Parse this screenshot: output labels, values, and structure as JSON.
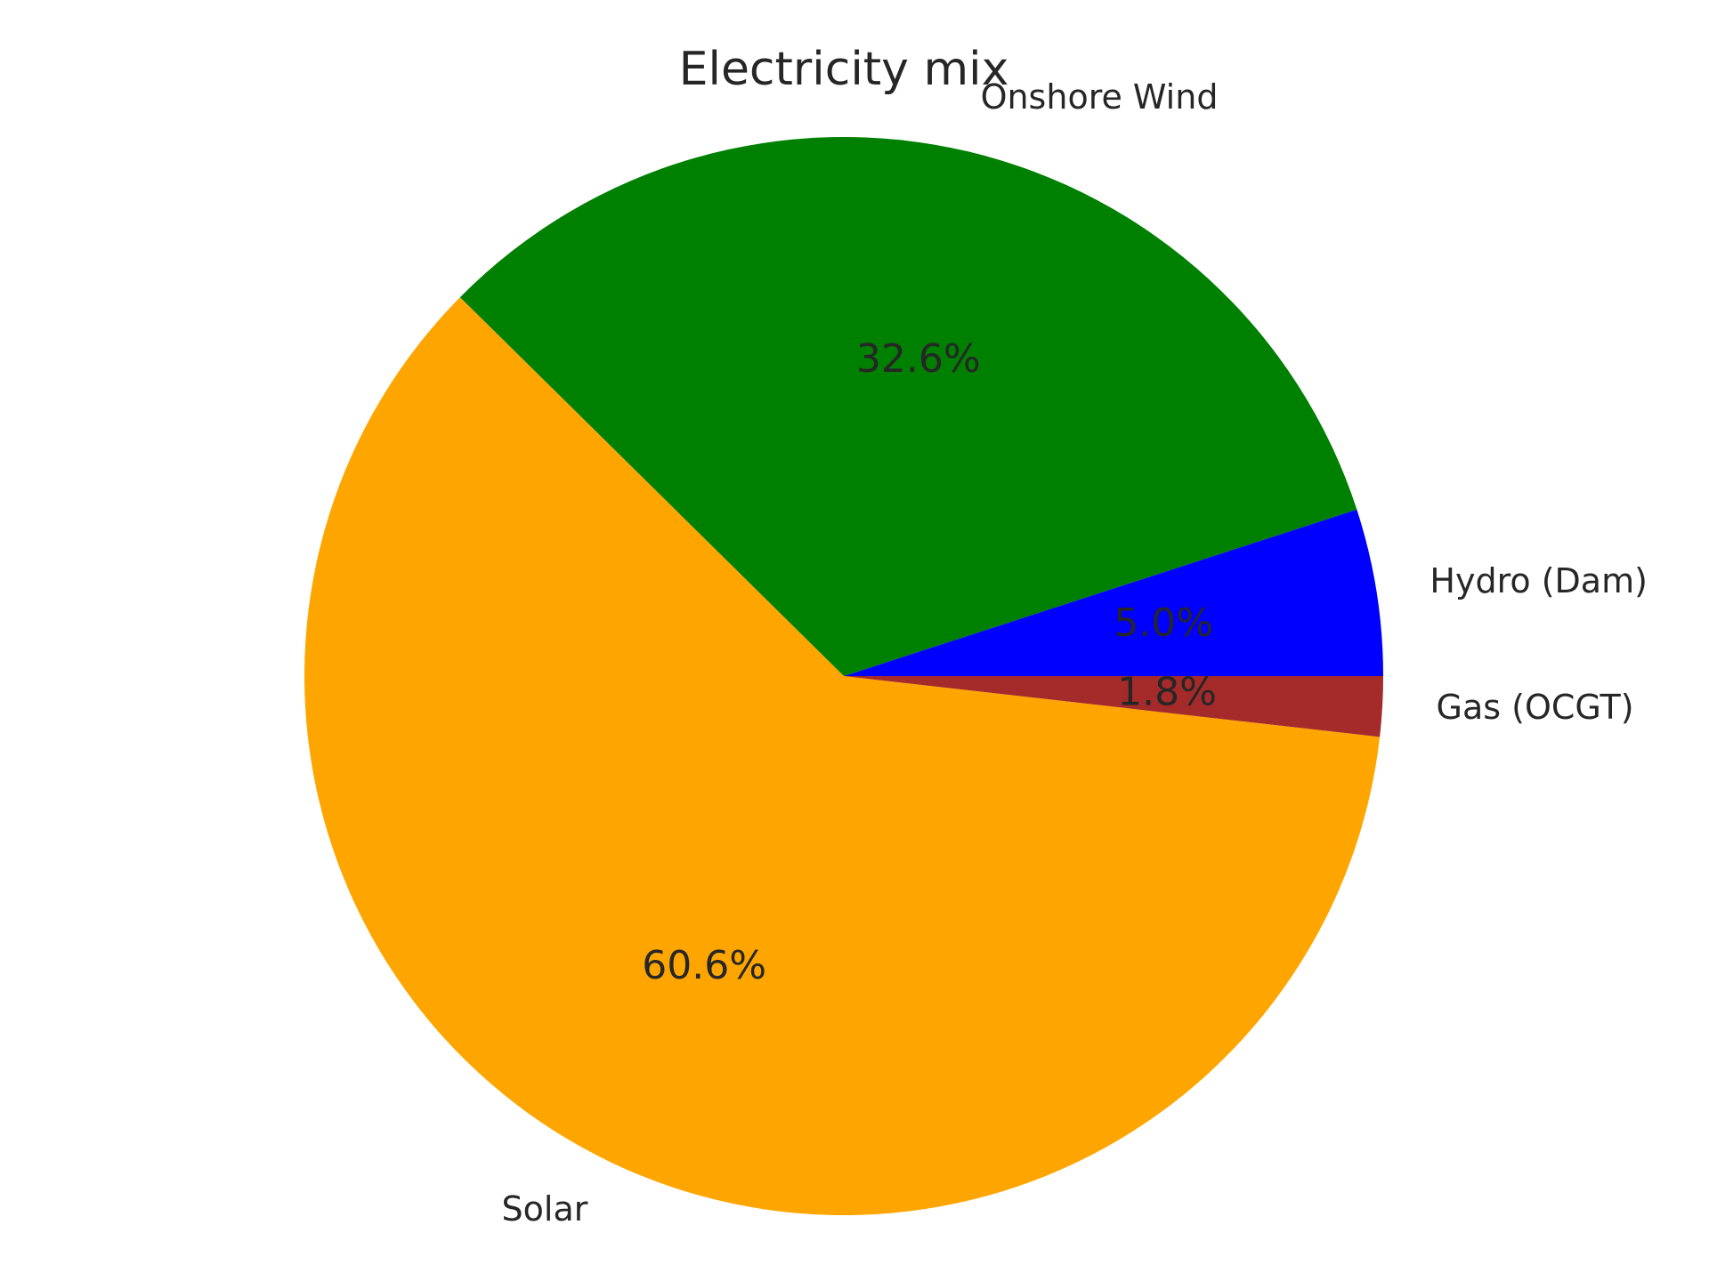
{
  "chart_data": {
    "type": "pie",
    "title": "Electricity mix",
    "slices": [
      {
        "label": "Hydro (Dam)",
        "value": 5.0,
        "pct_label": "5.0%",
        "color": "#0000ff"
      },
      {
        "label": "Onshore Wind",
        "value": 32.6,
        "pct_label": "32.6%",
        "color": "#008000"
      },
      {
        "label": "Solar",
        "value": 60.6,
        "pct_label": "60.6%",
        "color": "#ffa500"
      },
      {
        "label": "Gas (OCGT)",
        "value": 1.8,
        "pct_label": "1.8%",
        "color": "#a52a2a"
      }
    ],
    "start_angle_deg": 0,
    "direction": "counterclockwise",
    "legend": "none"
  }
}
